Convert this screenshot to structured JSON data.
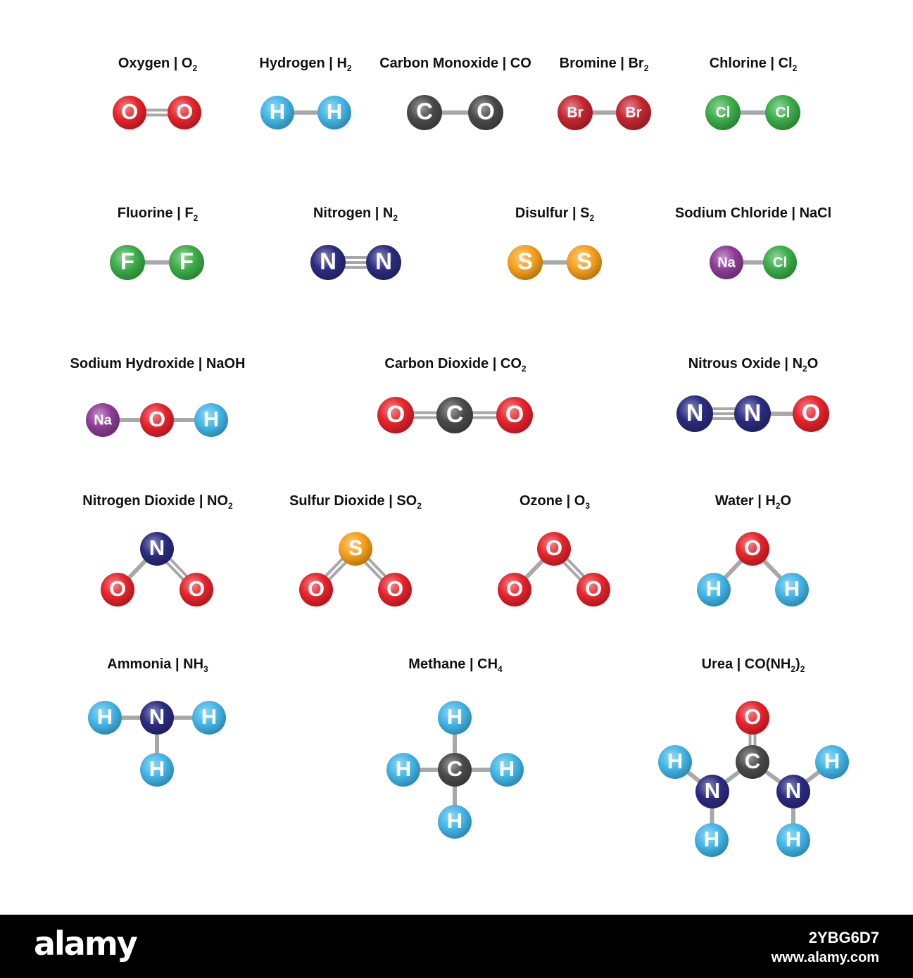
{
  "colors": {
    "O": "#e8232b",
    "H": "#42b6e8",
    "C": "#4a4a4a",
    "Br": "#c5262f",
    "Cl": "#3aae48",
    "F": "#3aae48",
    "N": "#2b2c80",
    "S": "#f7a01b",
    "Na": "#8e3d97",
    "Cl2": "#3aae48",
    "bond": "#a8a8a8"
  },
  "molecules": [
    {
      "title": "Oxygen | O",
      "sub": "2",
      "atoms": [
        [
          "O",
          "O"
        ],
        [
          "O",
          "O"
        ]
      ],
      "bonds": [
        [
          0,
          1,
          2
        ]
      ]
    },
    {
      "title": "Hydrogen | H",
      "sub": "2",
      "atoms": [
        [
          "H",
          "H"
        ],
        [
          "H",
          "H"
        ]
      ],
      "bonds": [
        [
          0,
          1,
          1
        ]
      ]
    },
    {
      "title": "Carbon Monoxide | CO",
      "sub": "",
      "atoms": [
        [
          "C",
          "C"
        ],
        [
          "O",
          "C"
        ]
      ],
      "bonds": [
        [
          0,
          1,
          1
        ]
      ]
    },
    {
      "title": "Bromine | Br",
      "sub": "2",
      "atoms": [
        [
          "Br",
          "Br"
        ],
        [
          "Br",
          "Br"
        ]
      ],
      "bonds": [
        [
          0,
          1,
          1
        ]
      ]
    },
    {
      "title": "Chlorine | Cl",
      "sub": "2",
      "atoms": [
        [
          "Cl",
          "Cl"
        ],
        [
          "Cl",
          "Cl"
        ]
      ],
      "bonds": [
        [
          0,
          1,
          1
        ]
      ]
    },
    {
      "title": "Fluorine | F",
      "sub": "2",
      "atoms": [
        [
          "F",
          "F"
        ],
        [
          "F",
          "F"
        ]
      ],
      "bonds": [
        [
          0,
          1,
          1
        ]
      ]
    },
    {
      "title": "Nitrogen | N",
      "sub": "2",
      "atoms": [
        [
          "N",
          "N"
        ],
        [
          "N",
          "N"
        ]
      ],
      "bonds": [
        [
          0,
          1,
          3
        ]
      ]
    },
    {
      "title": "Disulfur | S",
      "sub": "2",
      "atoms": [
        [
          "S",
          "S"
        ],
        [
          "S",
          "S"
        ]
      ],
      "bonds": [
        [
          0,
          1,
          1
        ]
      ]
    },
    {
      "title": "Sodium Chloride | NaCl",
      "sub": "",
      "atoms": [
        [
          "Na",
          "Na"
        ],
        [
          "Cl",
          "Cl2"
        ]
      ],
      "bonds": [
        [
          0,
          1,
          1
        ]
      ]
    },
    {
      "title": "Sodium Hydroxide | NaOH",
      "sub": "",
      "atoms": [
        [
          "Na",
          "Na"
        ],
        [
          "O",
          "O"
        ],
        [
          "H",
          "H"
        ]
      ],
      "bonds": [
        [
          0,
          1,
          1
        ],
        [
          1,
          2,
          1
        ]
      ]
    },
    {
      "title": "Carbon Dioxide | CO",
      "sub": "2",
      "atoms": [
        [
          "O",
          "O"
        ],
        [
          "C",
          "C"
        ],
        [
          "O",
          "O"
        ]
      ],
      "bonds": [
        [
          0,
          1,
          2
        ],
        [
          1,
          2,
          2
        ]
      ]
    },
    {
      "title": "Nitrous Oxide | N",
      "sub": "2",
      "tail": "O",
      "atoms": [
        [
          "N",
          "N"
        ],
        [
          "N",
          "N"
        ],
        [
          "O",
          "O"
        ]
      ],
      "bonds": [
        [
          0,
          1,
          3
        ],
        [
          1,
          2,
          1
        ]
      ]
    },
    {
      "title": "Nitrogen Dioxide | NO",
      "sub": "2",
      "atoms": [
        [
          "N",
          "N"
        ],
        [
          "O",
          "O"
        ],
        [
          "O",
          "O"
        ]
      ],
      "bonds": [
        [
          0,
          1,
          1
        ],
        [
          0,
          2,
          2
        ]
      ]
    },
    {
      "title": "Sulfur Dioxide | SO",
      "sub": "2",
      "atoms": [
        [
          "S",
          "S"
        ],
        [
          "O",
          "O"
        ],
        [
          "O",
          "O"
        ]
      ],
      "bonds": [
        [
          0,
          1,
          2
        ],
        [
          0,
          2,
          2
        ]
      ]
    },
    {
      "title": "Ozone | O",
      "sub": "3",
      "atoms": [
        [
          "O",
          "O"
        ],
        [
          "O",
          "O"
        ],
        [
          "O",
          "O"
        ]
      ],
      "bonds": [
        [
          0,
          1,
          1
        ],
        [
          0,
          2,
          2
        ]
      ]
    },
    {
      "title": "Water | H",
      "sub": "2",
      "tail": "O",
      "atoms": [
        [
          "O",
          "O"
        ],
        [
          "H",
          "H"
        ],
        [
          "H",
          "H"
        ]
      ],
      "bonds": [
        [
          0,
          1,
          1
        ],
        [
          0,
          2,
          1
        ]
      ]
    },
    {
      "title": "Ammonia | NH",
      "sub": "3",
      "atoms": [
        [
          "H",
          "H"
        ],
        [
          "N",
          "N"
        ],
        [
          "H",
          "H"
        ],
        [
          "H",
          "H"
        ]
      ],
      "bonds": [
        [
          0,
          1,
          1
        ],
        [
          1,
          2,
          1
        ],
        [
          1,
          3,
          1
        ]
      ]
    },
    {
      "title": "Methane | CH",
      "sub": "4",
      "atoms": [
        [
          "H",
          "H"
        ],
        [
          "H",
          "H"
        ],
        [
          "C",
          "C"
        ],
        [
          "H",
          "H"
        ],
        [
          "H",
          "H"
        ]
      ],
      "bonds": [
        [
          0,
          2,
          1
        ],
        [
          1,
          2,
          1
        ],
        [
          2,
          3,
          1
        ],
        [
          2,
          4,
          1
        ]
      ]
    },
    {
      "title": "Urea | CO(NH",
      "sub": "2",
      "tail": ")",
      "sub2": "2",
      "atoms": [
        [
          "O",
          "O"
        ],
        [
          "H",
          "H"
        ],
        [
          "C",
          "C"
        ],
        [
          "H",
          "H"
        ],
        [
          "N",
          "N"
        ],
        [
          "N",
          "N"
        ],
        [
          "H",
          "H"
        ],
        [
          "H",
          "H"
        ]
      ],
      "bonds": [
        [
          0,
          2,
          2
        ],
        [
          1,
          4,
          1
        ],
        [
          2,
          4,
          1
        ],
        [
          2,
          5,
          1
        ],
        [
          3,
          5,
          1
        ],
        [
          4,
          6,
          1
        ],
        [
          5,
          7,
          1
        ]
      ]
    }
  ],
  "footer": {
    "logo": "alamy",
    "image_id": "2YBG6D7",
    "site": "www.alamy.com"
  }
}
